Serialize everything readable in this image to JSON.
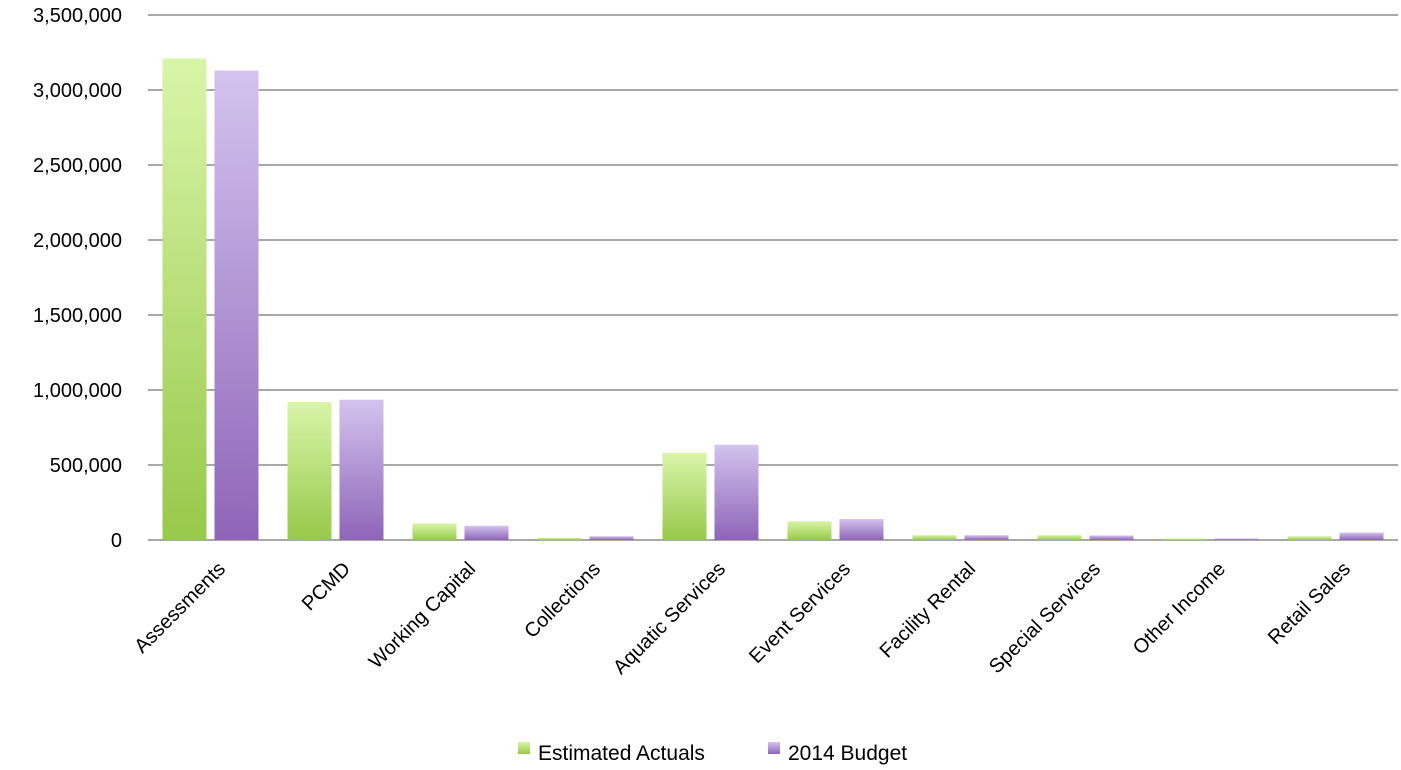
{
  "chart_data": {
    "type": "bar",
    "title": "",
    "xlabel": "",
    "ylabel": "",
    "ylim": [
      0,
      3500000
    ],
    "y_ticks": [
      0,
      500000,
      1000000,
      1500000,
      2000000,
      2500000,
      3000000,
      3500000
    ],
    "y_tick_labels": [
      "0",
      "500,000",
      "1,000,000",
      "1,500,000",
      "2,000,000",
      "2,500,000",
      "3,000,000",
      "3,500,000"
    ],
    "grid": true,
    "legend_position": "bottom-center",
    "categories": [
      "Assessments",
      "PCMD",
      "Working Capital",
      "Collections",
      "Aquatic Services",
      "Event Services",
      "Facility Rental",
      "Special Services",
      "Other Income",
      "Retail Sales"
    ],
    "series": [
      {
        "name": "Estimated Actuals",
        "color_top": "#d9f5a8",
        "color_bottom": "#97c94a",
        "values": [
          3210000,
          920000,
          110000,
          15000,
          580000,
          125000,
          32000,
          32000,
          5000,
          25000
        ]
      },
      {
        "name": "2014 Budget",
        "color_top": "#d3c3ee",
        "color_bottom": "#8e65b8",
        "values": [
          3130000,
          935000,
          95000,
          25000,
          635000,
          140000,
          32000,
          30000,
          3000,
          50000
        ]
      }
    ]
  }
}
